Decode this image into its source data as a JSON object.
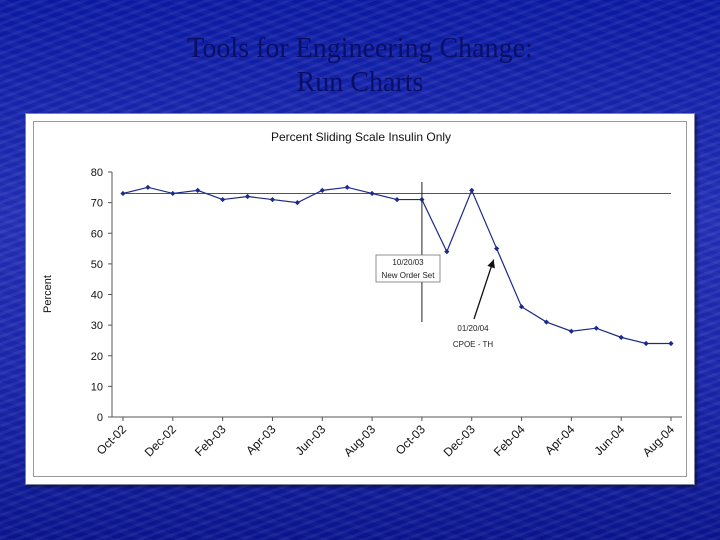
{
  "slide": {
    "title_line1": "Tools for Engineering Change:",
    "title_line2": "Run Charts"
  },
  "colors": {
    "series": "#1b2a8a",
    "baseline": "#cc2222",
    "title": "#0a0f66"
  },
  "chart_data": {
    "type": "line",
    "title": "Percent Sliding Scale Insulin Only",
    "xlabel": "",
    "ylabel": "Percent",
    "ylim": [
      0,
      80
    ],
    "yticks": [
      0,
      10,
      20,
      30,
      40,
      50,
      60,
      70,
      80
    ],
    "x_tick_labels": [
      "Oct-02",
      "Dec-02",
      "Feb-03",
      "Apr-03",
      "Jun-03",
      "Aug-03",
      "Oct-03",
      "Dec-03",
      "Feb-04",
      "Apr-04",
      "Jun-04",
      "Aug-04"
    ],
    "x": [
      "Oct-02",
      "Nov-02",
      "Dec-02",
      "Jan-03",
      "Feb-03",
      "Mar-03",
      "Apr-03",
      "May-03",
      "Jun-03",
      "Jul-03",
      "Aug-03",
      "Sep-03",
      "Oct-03",
      "Nov-03",
      "Dec-03",
      "Jan-04",
      "Feb-04",
      "Mar-04",
      "Apr-04",
      "May-04",
      "Jun-04",
      "Jul-04",
      "Aug-04"
    ],
    "values": [
      73,
      75,
      73,
      74,
      71,
      72,
      71,
      70,
      74,
      75,
      73,
      71,
      71,
      54,
      74,
      55,
      36,
      31,
      28,
      29,
      26,
      24,
      24
    ],
    "baseline": 73,
    "grid": false,
    "annotations": [
      {
        "line1": "10/20/03",
        "line2": "New Order Set",
        "at_x": "Oct-03"
      },
      {
        "line1": "01/20/04",
        "line2": "CPOE - TH",
        "points_to": "Jan-04"
      }
    ]
  }
}
